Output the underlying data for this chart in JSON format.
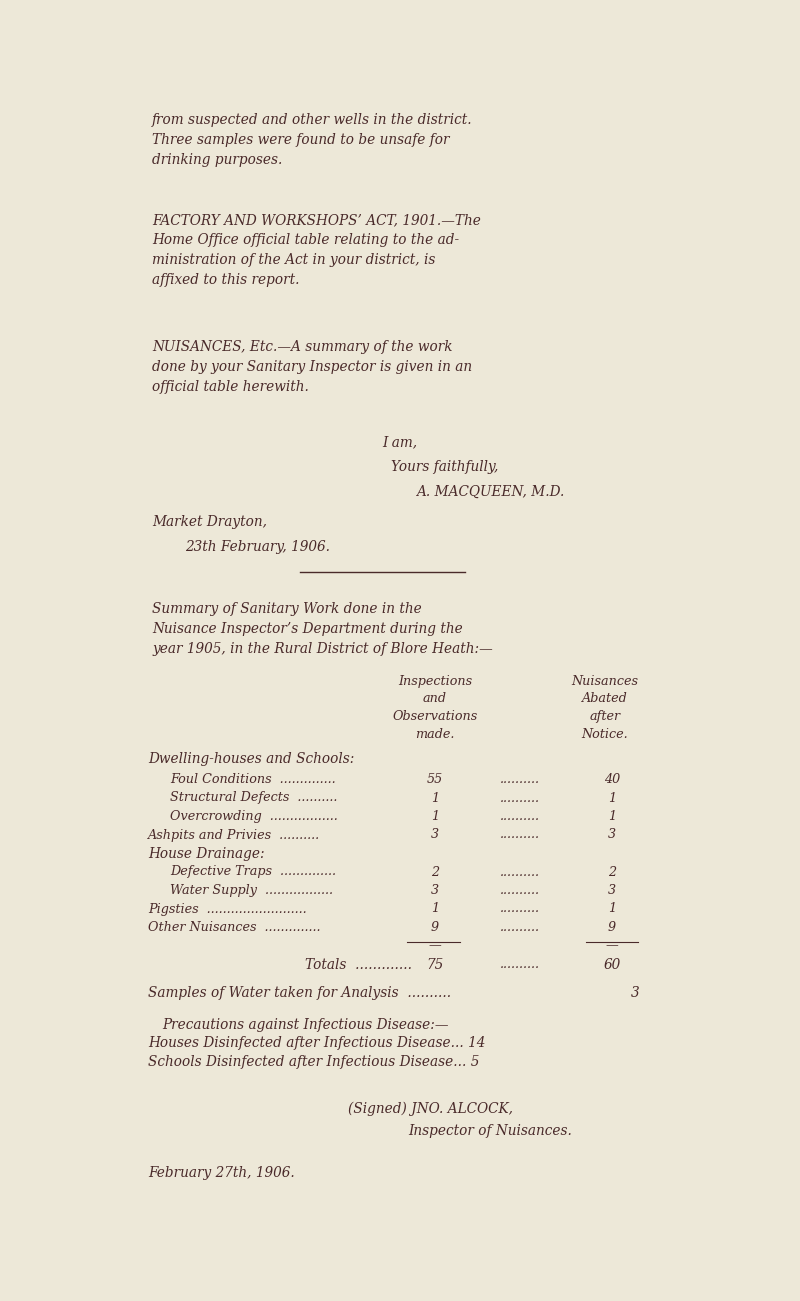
{
  "bg_color": "#ede8d8",
  "text_color": "#4a2a2a",
  "page_width": 8.0,
  "page_height": 13.01,
  "dpi": 100,
  "content": {
    "para1": "from suspected and other wells in the district.\nThree samples were found to be unsafe for\ndrinking purposes.",
    "para2": "FACTORY AND WORKSHOPS’ ACT, 1901.—The\nHome Office official table relating to the ad-\nministration of the Act in your district, is\naffixed to this report.",
    "para3": "NUISANCES, Etc.—A summary of the work\ndone by your Sanitary Inspector is given in an\nofficial table herewith.",
    "iam": "I am,",
    "yours": "Yours faithfully,",
    "macqueen": "A. MACQUEEN, M.D.",
    "market": "Market Drayton,",
    "date1": "23th February, 1906.",
    "summary_header": "Summary of Sanitary Work done in the\nNuisance Inspector’s Department during the\nyear 1905, in the Rural District of Blore Heath:—",
    "col1_header": "Inspections\nand\nObservations\nmade.",
    "col2_header": "Nuisances\nAbated\nafter\nNotice.",
    "dwell_header": "Dwelling-houses and Schools:",
    "rows": [
      {
        "label": "Foul Conditions  ..............",
        "indent": true,
        "v1": "55",
        "dots": "..........",
        "v2": "40"
      },
      {
        "label": "Structural Defects  ..........",
        "indent": true,
        "v1": "1",
        "dots": "..........",
        "v2": "1"
      },
      {
        "label": "Overcrowding  .................",
        "indent": true,
        "v1": "1",
        "dots": "..........",
        "v2": "1"
      },
      {
        "label": "Ashpits and Privies  ..........",
        "indent": false,
        "v1": "3",
        "dots": "..........",
        "v2": "3"
      }
    ],
    "house_header": "House Drainage:",
    "rows2": [
      {
        "label": "Defective Traps  ..............",
        "indent": true,
        "v1": "2",
        "dots": "..........",
        "v2": "2"
      },
      {
        "label": "Water Supply  .................",
        "indent": true,
        "v1": "3",
        "dots": "..........",
        "v2": "3"
      },
      {
        "label": "Pigsties  .........................",
        "indent": false,
        "v1": "1",
        "dots": "..........",
        "v2": "1"
      },
      {
        "label": "Other Nuisances  ..............",
        "indent": false,
        "v1": "9",
        "dots": "..........",
        "v2": "9"
      }
    ],
    "dash1": "—",
    "dash2": "—",
    "totals_label": "Totals  .............",
    "totals_v1": "75",
    "totals_dots": "..........",
    "totals_v2": "60",
    "samples": "Samples of Water taken for Analysis  ..........",
    "samples_v": "3",
    "precautions_header": "Precautions against Infectious Disease:—",
    "houses_line": "Houses Disinfected after Infectious Disease... 14",
    "schools_line": "Schools Disinfected after Infectious Disease... 5",
    "signed": "(Signed) JNO. ALCOCK,",
    "inspector": "Inspector of Nuisances.",
    "date2": "February 27th, 1906."
  }
}
